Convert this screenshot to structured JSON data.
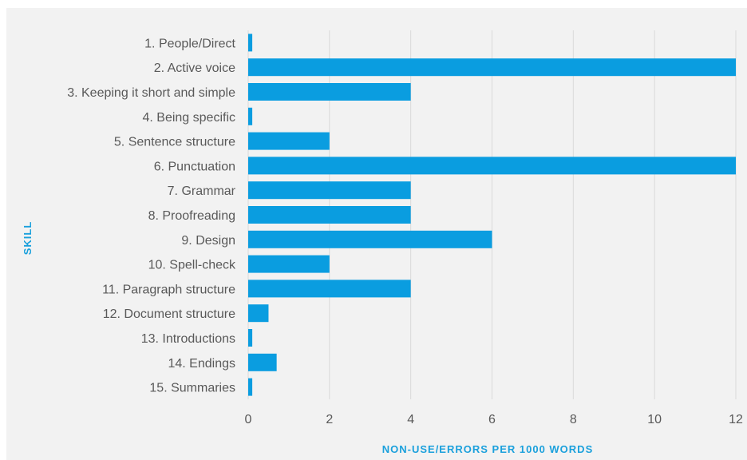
{
  "chart_data": {
    "type": "bar",
    "orientation": "horizontal",
    "categories": [
      "1. People/Direct",
      "2. Active voice",
      "3. Keeping it short and simple",
      "4. Being specific",
      "5. Sentence structure",
      "6. Punctuation",
      "7. Grammar",
      "8. Proofreading",
      "9. Design",
      "10. Spell-check",
      "11. Paragraph structure",
      "12. Document structure",
      "13. Introductions",
      "14. Endings",
      "15. Summaries"
    ],
    "values": [
      0.1,
      12,
      4,
      0.1,
      2,
      12,
      4,
      4,
      6,
      2,
      4,
      0.5,
      0.1,
      0.7,
      0.1
    ],
    "xlabel": "NON-USE/ERRORS PER 1000 WORDS",
    "ylabel": "SKILL",
    "xlim": [
      0,
      12
    ],
    "xticks": [
      "0",
      "2",
      "4",
      "6",
      "8",
      "10",
      "12"
    ],
    "grid": "vertical",
    "bar_color": "#0a9de0",
    "legend": "none"
  }
}
